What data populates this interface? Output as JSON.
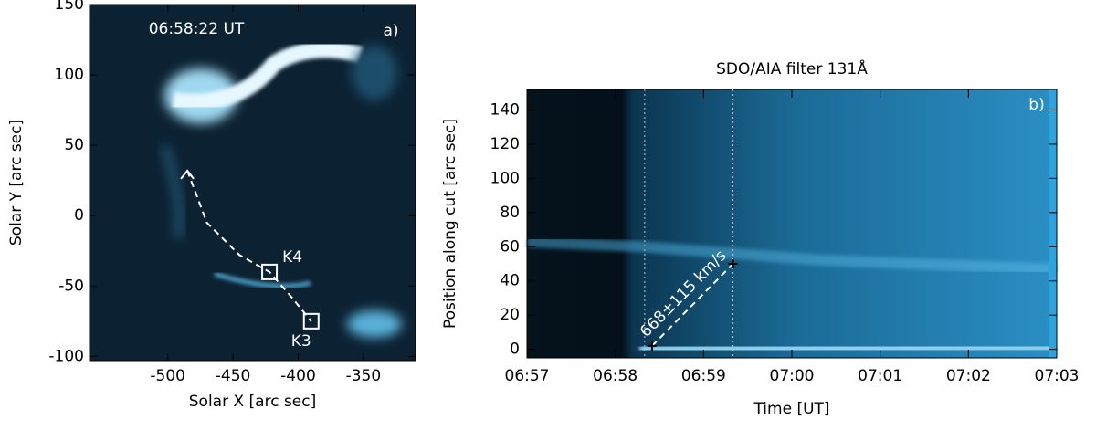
{
  "chart_data": [
    {
      "type": "image",
      "annotations": [
        "06:58:22 UT",
        "a)"
      ],
      "xlabel": "Solar X [arc sec]",
      "ylabel": "Solar Y [arc sec]",
      "xlim": [
        -560,
        -310
      ],
      "xticks": [
        -500,
        -450,
        -400,
        -350
      ],
      "ylim": [
        -103,
        150
      ],
      "yticks": [
        -100,
        -50,
        0,
        50,
        100,
        150
      ],
      "markers": [
        {
          "name": "K4",
          "x": -422,
          "y": -40
        },
        {
          "name": "K3",
          "x": -390,
          "y": -75
        }
      ],
      "cut": {
        "x": [
          -485,
          -470,
          -445,
          -422,
          -405,
          -390
        ],
        "y": [
          32,
          -5,
          -28,
          -40,
          -58,
          -75
        ]
      }
    },
    {
      "type": "time-distance",
      "title": "SDO/AIA filter 131Å",
      "annotations": [
        "b)",
        "668±115 km/s"
      ],
      "xlabel": "Time [UT]",
      "ylabel": "Position along cut [arc sec]",
      "xlim": [
        "06:57",
        "07:03"
      ],
      "xticks": [
        "06:57",
        "06:58",
        "06:59",
        "07:00",
        "07:01",
        "07:02",
        "07:03"
      ],
      "ylim": [
        -5,
        152
      ],
      "yticks": [
        0,
        20,
        40,
        60,
        80,
        100,
        120,
        140
      ],
      "vlines": [
        "06:58:20",
        "06:59:20"
      ],
      "fit": {
        "x": [
          "06:58:25",
          "06:59:20"
        ],
        "y": [
          2,
          50
        ]
      }
    }
  ]
}
